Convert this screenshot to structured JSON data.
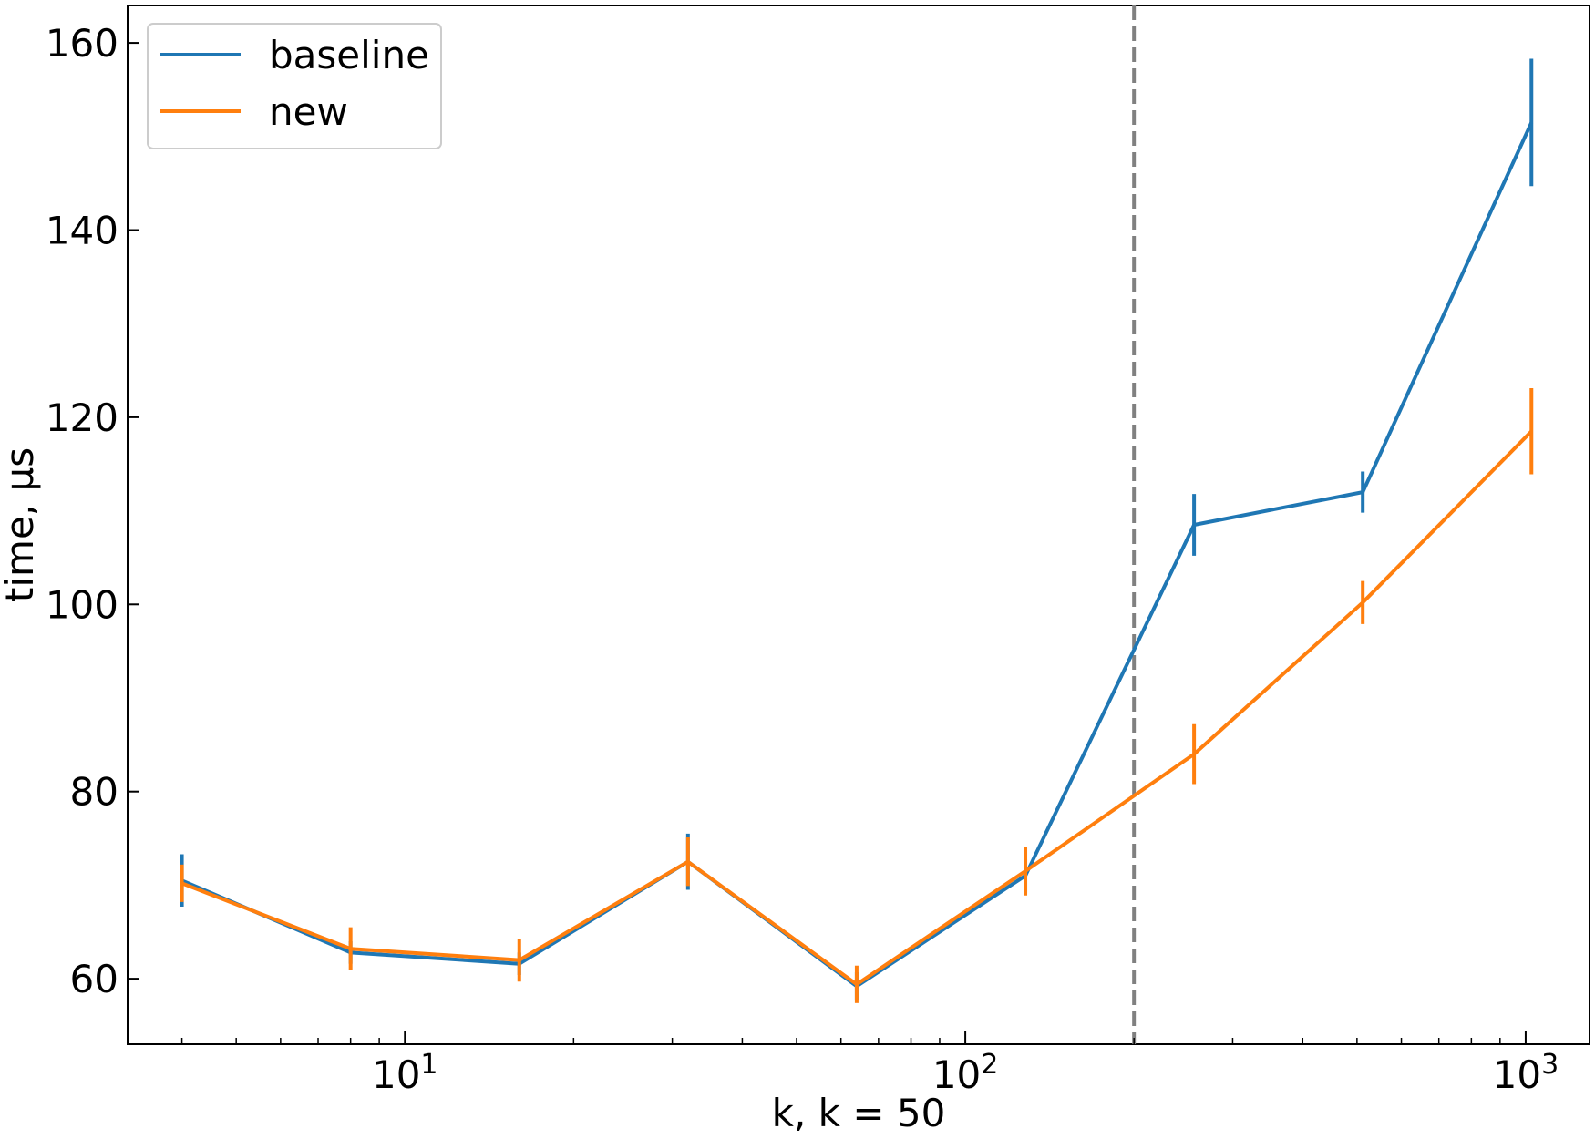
{
  "chart_data": {
    "type": "line",
    "title": "",
    "xlabel": "k, k = 50",
    "ylabel": "time, μs",
    "xscale": "log",
    "xlim": [
      3.2,
      1300
    ],
    "ylim": [
      53,
      164
    ],
    "grid": false,
    "legend_position": "top-left",
    "x_ticks": [
      {
        "value": 10,
        "base": "10",
        "exp": "1"
      },
      {
        "value": 100,
        "base": "10",
        "exp": "2"
      },
      {
        "value": 1000,
        "base": "10",
        "exp": "3"
      }
    ],
    "y_ticks": [
      60,
      80,
      100,
      120,
      140,
      160
    ],
    "y_tick_labels": [
      "60",
      "80",
      "100",
      "120",
      "140",
      "160"
    ],
    "reference_line": {
      "x": 200,
      "style": "dashed",
      "color": "#808080"
    },
    "x": [
      4,
      8,
      16,
      32,
      64,
      128,
      256,
      512,
      1024
    ],
    "series": [
      {
        "name": "baseline",
        "color": "#1f77b4",
        "values": [
          70.5,
          62.8,
          61.6,
          72.5,
          59.2,
          71.0,
          108.5,
          112.0,
          151.5
        ],
        "errors": [
          2.8,
          1.2,
          1.2,
          3.0,
          1.5,
          1.8,
          3.3,
          2.2,
          6.8
        ]
      },
      {
        "name": "new",
        "color": "#ff7f0e",
        "values": [
          70.2,
          63.2,
          62.0,
          72.5,
          59.4,
          71.5,
          84.0,
          100.2,
          118.5
        ],
        "errors": [
          2.0,
          2.3,
          2.3,
          2.6,
          2.0,
          2.6,
          3.2,
          2.3,
          4.6
        ]
      }
    ]
  }
}
